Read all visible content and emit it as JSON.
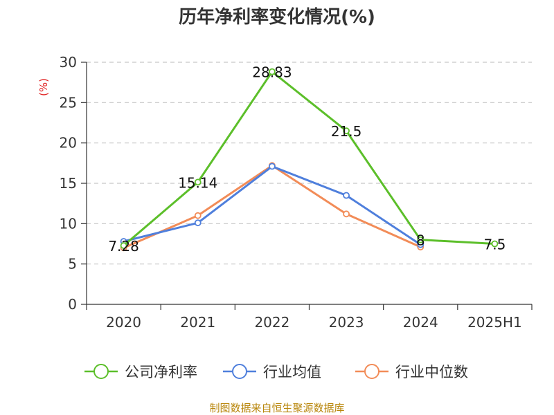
{
  "chart_data": {
    "type": "line",
    "title": "历年净利率变化情况(%)",
    "ylabel": "(%)",
    "xlabel": "",
    "categories": [
      "2020",
      "2021",
      "2022",
      "2023",
      "2024",
      "2025H1"
    ],
    "ylim": [
      0,
      30
    ],
    "yticks": [
      "0",
      "5",
      "10",
      "15",
      "20",
      "25",
      "30"
    ],
    "grid": true,
    "legend_position": "bottom",
    "series": [
      {
        "name": "公司净利率",
        "color": "#5cbf2a",
        "values": [
          7.28,
          15.14,
          28.83,
          21.5,
          8,
          7.5
        ],
        "labels": [
          "7.28",
          "15.14",
          "28.83",
          "21.5",
          "8",
          "7.5"
        ]
      },
      {
        "name": "行业均值",
        "color": "#4f7fdc",
        "values": [
          7.8,
          10.1,
          17.1,
          13.5,
          7.4,
          null
        ]
      },
      {
        "name": "行业中位数",
        "color": "#f28c58",
        "values": [
          7.0,
          11.0,
          17.2,
          11.2,
          7.1,
          null
        ]
      }
    ]
  },
  "footer": {
    "source": "制图数据来自恒生聚源数据库"
  }
}
